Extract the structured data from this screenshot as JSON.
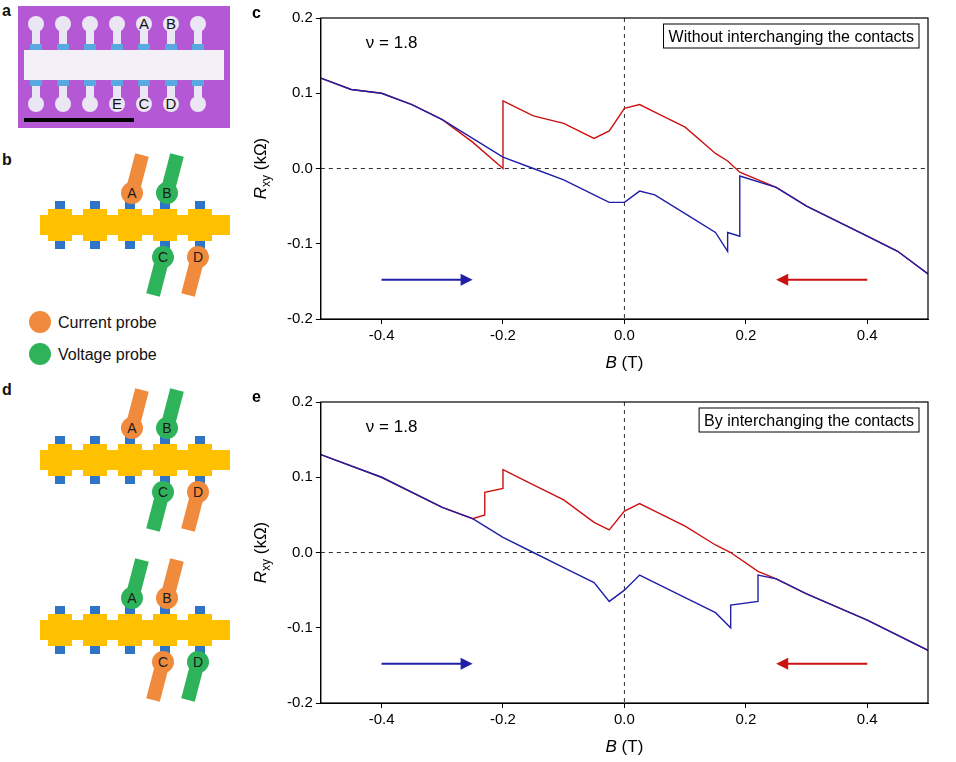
{
  "chart_data": [
    {
      "type": "line",
      "panel_label": "c",
      "title": "Without interchanging the contacts",
      "annotations": [
        "ν = 1.8"
      ],
      "x_label": "B (T)",
      "y_label": "Rxy (kΩ)",
      "x": [
        -0.5,
        -0.45,
        -0.4,
        -0.35,
        -0.3,
        -0.25,
        -0.2,
        -0.2,
        -0.15,
        -0.1,
        -0.05,
        -0.025,
        0,
        0.025,
        0.05,
        0.1,
        0.15,
        0.17,
        0.17,
        0.19,
        0.19,
        0.25,
        0.3,
        0.35,
        0.4,
        0.45,
        0.5
      ],
      "series": [
        {
          "color": "#1f1fa8",
          "values": [
            0.12,
            0.105,
            0.1,
            0.085,
            0.065,
            0.04,
            0.015,
            0.015,
            0.0,
            -0.015,
            -0.035,
            -0.045,
            -0.045,
            -0.03,
            -0.035,
            -0.06,
            -0.085,
            -0.11,
            -0.085,
            -0.09,
            -0.01,
            -0.025,
            -0.05,
            -0.07,
            -0.09,
            -0.11,
            -0.14
          ]
        },
        {
          "color": "#cc1111",
          "values": [
            0.12,
            0.105,
            0.1,
            0.085,
            0.065,
            0.035,
            0.0,
            0.09,
            0.07,
            0.06,
            0.04,
            0.05,
            0.08,
            0.085,
            0.075,
            0.055,
            0.02,
            0.01,
            0.01,
            -0.005,
            -0.005,
            -0.025,
            -0.05,
            -0.07,
            -0.09,
            -0.11,
            -0.14
          ]
        }
      ],
      "xlim": [
        -0.5,
        0.5
      ],
      "xticks": [
        -0.4,
        -0.2,
        {
          "value": 0,
          "label": "0.0"
        },
        0.2,
        0.4
      ],
      "ylim": [
        -0.2,
        0.2
      ],
      "yticks": [
        -0.2,
        -0.1,
        {
          "value": 0,
          "label": "0.0"
        },
        0.1,
        0.2
      ],
      "grid": false
    },
    {
      "type": "line",
      "panel_label": "e",
      "title": "By interchanging the contacts",
      "annotations": [
        "ν = 1.8"
      ],
      "x_label": "B (T)",
      "y_label": "Rxy (kΩ)",
      "x": [
        -0.5,
        -0.4,
        -0.3,
        -0.25,
        -0.23,
        -0.23,
        -0.2,
        -0.2,
        -0.15,
        -0.1,
        -0.05,
        -0.025,
        0,
        0.025,
        0.05,
        0.1,
        0.15,
        0.175,
        0.175,
        0.22,
        0.22,
        0.25,
        0.3,
        0.4,
        0.5
      ],
      "series": [
        {
          "color": "#1f1fa8",
          "values": [
            0.13,
            0.1,
            0.06,
            0.045,
            0.035,
            0.035,
            0.02,
            0.02,
            0.0,
            -0.02,
            -0.04,
            -0.065,
            -0.05,
            -0.03,
            -0.04,
            -0.06,
            -0.08,
            -0.1,
            -0.07,
            -0.065,
            -0.03,
            -0.035,
            -0.055,
            -0.09,
            -0.13
          ]
        },
        {
          "color": "#cc1111",
          "values": [
            0.13,
            0.1,
            0.06,
            0.045,
            0.05,
            0.08,
            0.085,
            0.11,
            0.09,
            0.07,
            0.04,
            0.03,
            0.055,
            0.065,
            0.055,
            0.035,
            0.01,
            0.0,
            0.0,
            -0.025,
            -0.025,
            -0.035,
            -0.055,
            -0.09,
            -0.13
          ]
        }
      ],
      "xlim": [
        -0.5,
        0.5
      ],
      "xticks": [
        -0.4,
        -0.2,
        {
          "value": 0,
          "label": "0.0"
        },
        0.2,
        0.4
      ],
      "ylim": [
        -0.2,
        0.2
      ],
      "yticks": [
        -0.2,
        -0.1,
        {
          "value": 0,
          "label": "0.0"
        },
        0.1,
        0.2
      ],
      "grid": false
    }
  ],
  "panel_a": {
    "panel_label": "a",
    "contacts_top": [
      "A",
      "B"
    ],
    "contacts_bottom": [
      "E",
      "C",
      "D"
    ]
  },
  "panel_b": {
    "panel_label": "b",
    "probes": [
      {
        "label": "A",
        "color": "#f08a3c"
      },
      {
        "label": "B",
        "color": "#2fb35a"
      },
      {
        "label": "C",
        "color": "#2fb35a"
      },
      {
        "label": "D",
        "color": "#f08a3c"
      }
    ]
  },
  "probe_legend": [
    {
      "label": "Current probe",
      "color": "#f08a3c"
    },
    {
      "label": "Voltage probe",
      "color": "#2fb35a"
    }
  ],
  "panel_d": {
    "panel_label": "d",
    "configurations": [
      [
        {
          "label": "A",
          "color": "#f08a3c"
        },
        {
          "label": "B",
          "color": "#2fb35a"
        },
        {
          "label": "C",
          "color": "#2fb35a"
        },
        {
          "label": "D",
          "color": "#f08a3c"
        }
      ],
      [
        {
          "label": "A",
          "color": "#2fb35a"
        },
        {
          "label": "B",
          "color": "#f08a3c"
        },
        {
          "label": "C",
          "color": "#f08a3c"
        },
        {
          "label": "D",
          "color": "#2fb35a"
        }
      ]
    ]
  }
}
